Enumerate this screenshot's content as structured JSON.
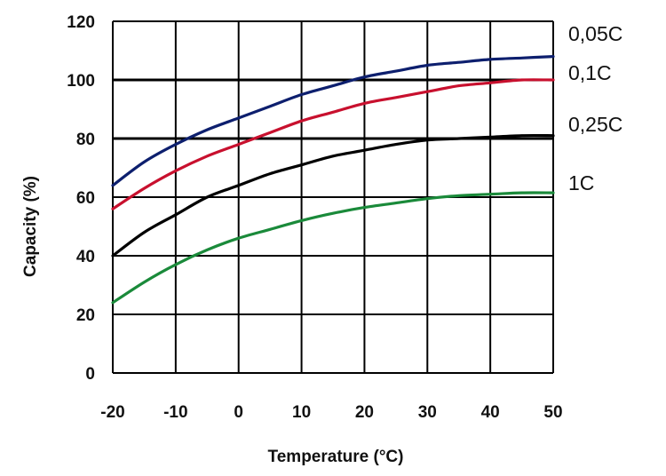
{
  "chart_data": {
    "type": "line",
    "xlabel": "Temperature (°C)",
    "ylabel": "Capacity (%)",
    "xlim": [
      -20,
      50
    ],
    "ylim": [
      0,
      120
    ],
    "x_ticks": [
      -20,
      -10,
      0,
      10,
      20,
      30,
      40,
      50
    ],
    "y_ticks": [
      0,
      20,
      40,
      60,
      80,
      100,
      120
    ],
    "grid": true,
    "legend": "right-side labels",
    "x": [
      -20,
      -15,
      -10,
      -5,
      0,
      5,
      10,
      15,
      20,
      25,
      30,
      35,
      40,
      45,
      50
    ],
    "series": [
      {
        "name": "0,05C",
        "color": "#0d1f6e",
        "values": [
          64,
          72,
          78,
          83,
          87,
          91,
          95,
          98,
          101,
          103,
          105,
          106,
          107,
          107.5,
          108
        ]
      },
      {
        "name": "0,1C",
        "color": "#c8102e",
        "values": [
          56,
          63,
          69,
          74,
          78,
          82,
          86,
          89,
          92,
          94,
          96,
          98,
          99,
          100,
          100
        ]
      },
      {
        "name": "0,25C",
        "color": "#000000",
        "values": [
          40,
          48,
          54,
          60,
          64,
          68,
          71,
          74,
          76,
          78,
          79.5,
          80,
          80.5,
          81,
          81
        ]
      },
      {
        "name": "1C",
        "color": "#1a8a3a",
        "values": [
          24,
          31,
          37,
          42,
          46,
          49,
          52,
          54.5,
          56.5,
          58,
          59.5,
          60.5,
          61,
          61.5,
          61.5
        ]
      }
    ]
  }
}
